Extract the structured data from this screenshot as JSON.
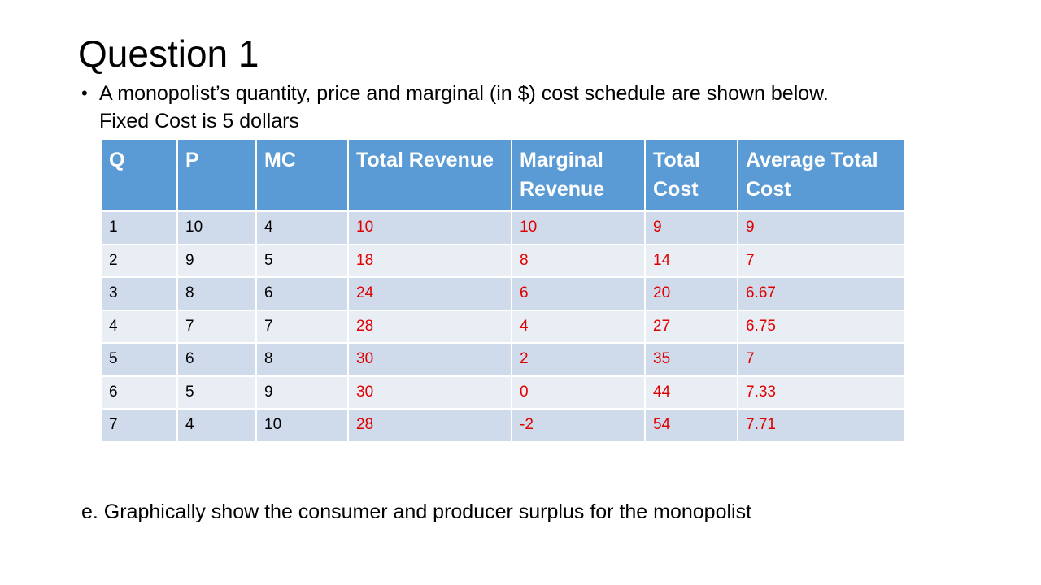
{
  "slide": {
    "title": "Question 1",
    "bullet": {
      "line1": "A monopolist’s quantity, price and marginal (in $) cost schedule are shown below.",
      "line2": "Fixed Cost is 5 dollars"
    },
    "question_e": "e. Graphically show the consumer and producer surplus for the monopolist"
  },
  "table": {
    "headers": [
      "Q",
      "P",
      "MC",
      "Total Revenue",
      "Marginal Revenue",
      "Total Cost",
      "Average Total Cost"
    ],
    "rows": [
      [
        "1",
        "10",
        "4",
        "10",
        "10",
        "9",
        "9"
      ],
      [
        "2",
        "9",
        "5",
        "18",
        "8",
        "14",
        "7"
      ],
      [
        "3",
        "8",
        "6",
        "24",
        "6",
        "20",
        "6.67"
      ],
      [
        "4",
        "7",
        "7",
        "28",
        "4",
        "27",
        "6.75"
      ],
      [
        "5",
        "6",
        "8",
        "30",
        "2",
        "35",
        "7"
      ],
      [
        "6",
        "5",
        "9",
        "30",
        "0",
        "44",
        "7.33"
      ],
      [
        "7",
        "4",
        "10",
        "28",
        "-2",
        "54",
        "7.71"
      ]
    ]
  },
  "colors": {
    "header_bg": "#5b9bd5",
    "row_band_dark": "#cfdaea",
    "row_band_light": "#e9edf4",
    "answer_text": "#e00000"
  }
}
